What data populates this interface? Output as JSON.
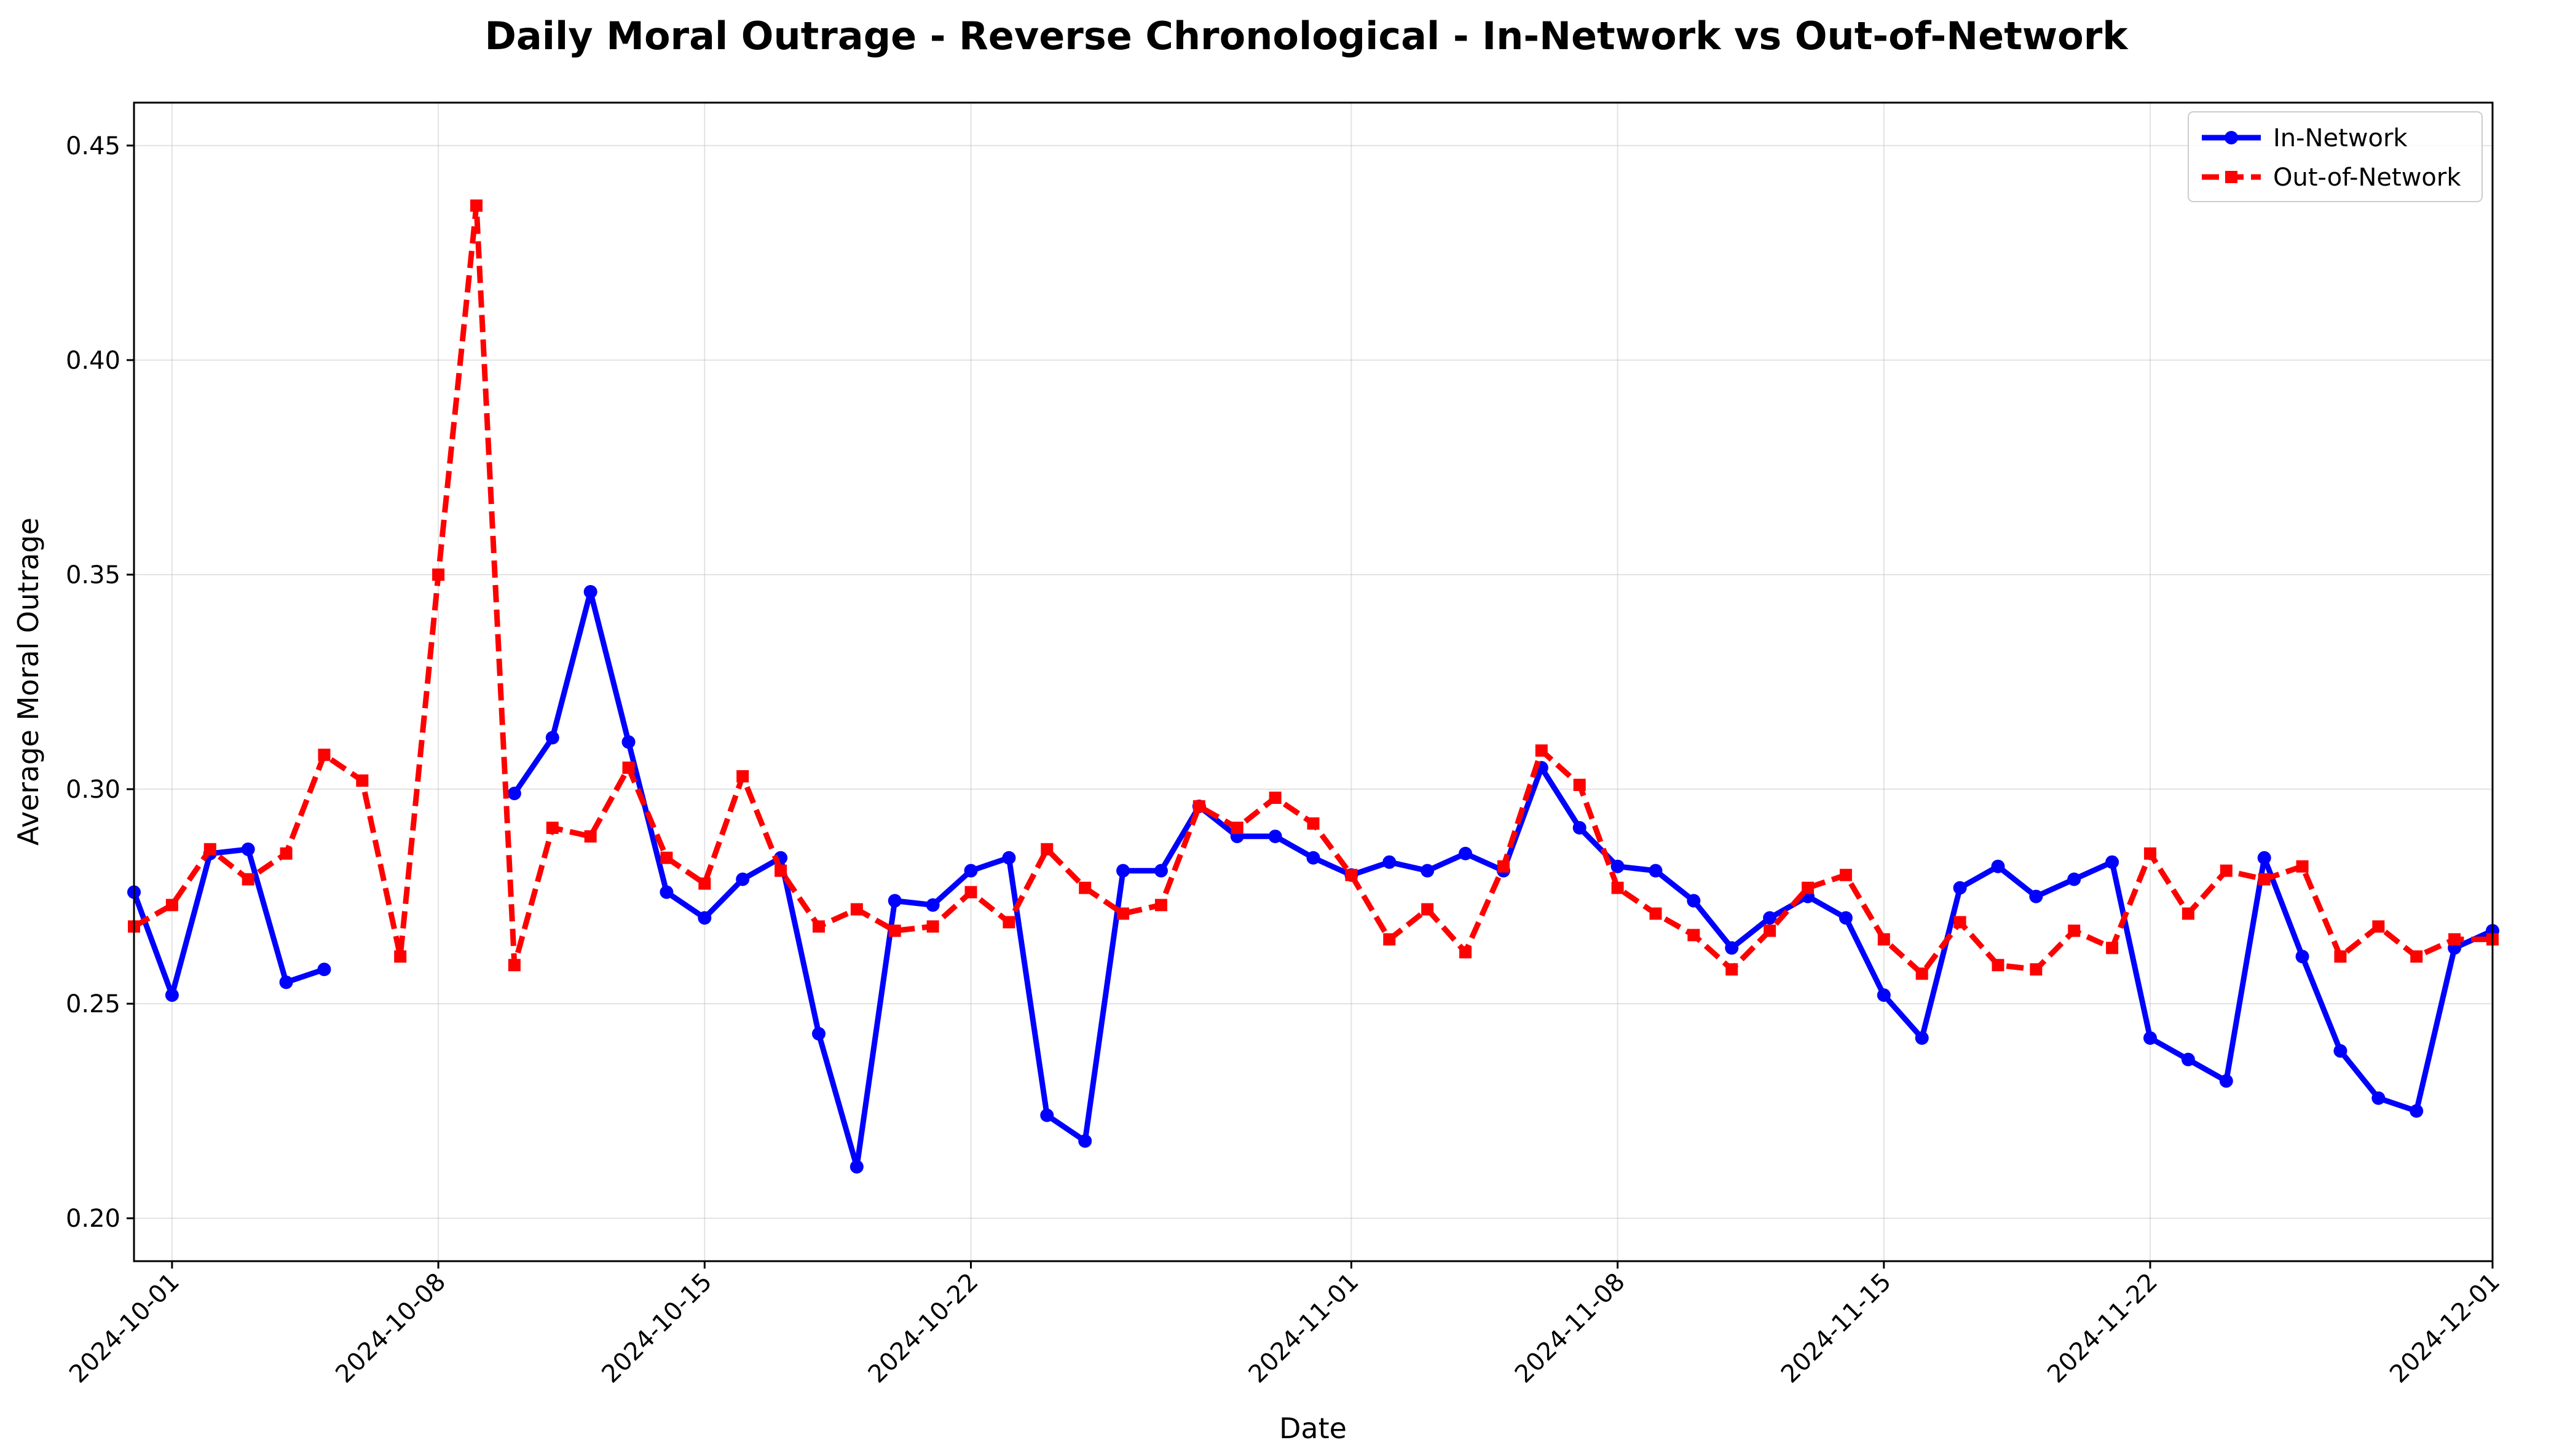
{
  "chart_data": {
    "type": "line",
    "title": "Daily Moral Outrage - Reverse Chronological - In-Network vs Out-of-Network",
    "xlabel": "Date",
    "ylabel": "Average Moral Outrage",
    "x_start": "2024-09-30",
    "xlim": [
      "2024-09-30",
      "2024-12-01"
    ],
    "ylim": [
      0.19,
      0.46
    ],
    "x_ticks": [
      "2024-10-01",
      "2024-10-08",
      "2024-10-15",
      "2024-10-22",
      "2024-11-01",
      "2024-11-08",
      "2024-11-15",
      "2024-11-22",
      "2024-12-01"
    ],
    "y_ticks": [
      "0.20",
      "0.25",
      "0.30",
      "0.35",
      "0.40",
      "0.45"
    ],
    "grid": true,
    "legend_position": "top-right",
    "series": [
      {
        "name": "In-Network",
        "color": "#0000ff",
        "style": "solid",
        "marker": "circle",
        "values": [
          0.276,
          0.252,
          0.285,
          0.286,
          0.255,
          0.258,
          null,
          null,
          null,
          null,
          0.299,
          0.312,
          0.346,
          0.311,
          0.276,
          0.27,
          0.279,
          0.284,
          0.243,
          0.212,
          0.274,
          0.273,
          0.281,
          0.284,
          0.224,
          0.218,
          0.281,
          0.281,
          0.296,
          0.289,
          0.289,
          0.284,
          0.28,
          0.283,
          0.281,
          0.285,
          0.281,
          0.305,
          0.291,
          0.282,
          0.281,
          0.274,
          0.263,
          0.27,
          0.275,
          0.27,
          0.252,
          0.242,
          0.277,
          0.282,
          0.275,
          0.279,
          0.283,
          0.242,
          0.237,
          0.232,
          0.284,
          0.261,
          0.239,
          0.228,
          0.225,
          0.263,
          0.267
        ]
      },
      {
        "name": "Out-of-Network",
        "color": "#ff0000",
        "style": "dashed",
        "marker": "square",
        "values": [
          0.268,
          0.273,
          0.286,
          0.279,
          0.285,
          0.308,
          0.302,
          0.261,
          0.35,
          0.436,
          0.259,
          0.291,
          0.289,
          0.305,
          0.284,
          0.278,
          0.303,
          0.281,
          0.268,
          0.272,
          0.267,
          0.268,
          0.276,
          0.269,
          0.286,
          0.277,
          0.271,
          0.273,
          0.296,
          0.291,
          0.298,
          0.292,
          0.28,
          0.265,
          0.272,
          0.262,
          0.282,
          0.309,
          0.301,
          0.277,
          0.271,
          0.266,
          0.258,
          0.267,
          0.277,
          0.28,
          0.265,
          0.257,
          0.269,
          0.259,
          0.258,
          0.267,
          0.263,
          0.285,
          0.271,
          0.281,
          0.279,
          0.282,
          0.261,
          0.268,
          0.261,
          0.265,
          0.265
        ]
      }
    ]
  }
}
